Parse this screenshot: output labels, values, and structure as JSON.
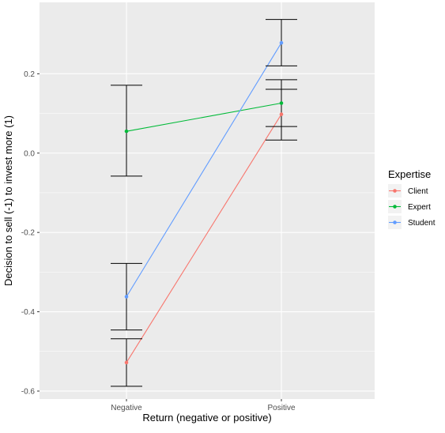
{
  "chart_data": {
    "type": "line",
    "categories": [
      "Negative",
      "Positive"
    ],
    "xlabel": "Return (negative or positive)",
    "ylabel": "Decision to sell (-1) to invest more (1)",
    "ylim": [
      -0.62,
      0.38
    ],
    "yticks": [
      0.2,
      0.0,
      -0.2,
      -0.4,
      -0.6
    ],
    "ytick_labels": [
      "0.2",
      "0.0",
      "-0.2",
      "-0.4",
      "-0.6"
    ],
    "grid": true,
    "legend": {
      "title": "Expertise",
      "position": "right"
    },
    "series": [
      {
        "name": "Client",
        "color": "#F8766D",
        "values": [
          -0.528,
          0.098
        ],
        "error_low": [
          -0.588,
          0.033
        ],
        "error_high": [
          -0.468,
          0.161
        ]
      },
      {
        "name": "Expert",
        "color": "#00BA38",
        "values": [
          0.055,
          0.126
        ],
        "error_low": [
          -0.058,
          0.067
        ],
        "error_high": [
          0.171,
          0.185
        ]
      },
      {
        "name": "Student",
        "color": "#619CFF",
        "values": [
          -0.362,
          0.278
        ],
        "error_low": [
          -0.446,
          0.22
        ],
        "error_high": [
          -0.278,
          0.337
        ]
      }
    ]
  }
}
